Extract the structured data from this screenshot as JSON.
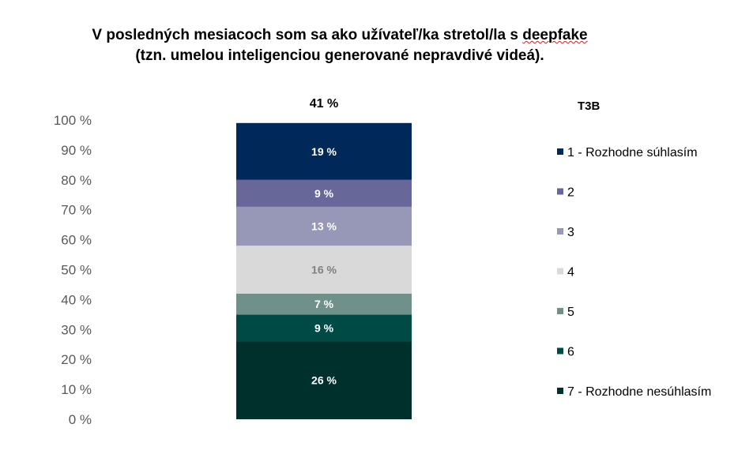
{
  "title": {
    "line1_pre": "V posledných mesiacoch som sa ako užívateľ/ka stretol/la s ",
    "line1_word": "deepfake",
    "line2": "(tzn. umelou inteligenciou generované nepravdivé videá)."
  },
  "chart_data": {
    "type": "bar",
    "stacked": true,
    "ylim": [
      0,
      100
    ],
    "yticks": [
      0,
      10,
      20,
      30,
      40,
      50,
      60,
      70,
      80,
      90,
      100
    ],
    "ytick_labels": [
      "0 %",
      "10 %",
      "20 %",
      "30 %",
      "40 %",
      "50 %",
      "60 %",
      "70 %",
      "80 %",
      "90 %",
      "100 %"
    ],
    "total_label": "41 %",
    "legend_title": "T3B",
    "legend_position": "right",
    "grid": false,
    "series": [
      {
        "name": "7 - Rozhodne nesúhlasím",
        "value": 26,
        "label": "26 %",
        "color": "#00302c",
        "label_color": "#ffffff"
      },
      {
        "name": "6",
        "value": 9,
        "label": "9 %",
        "color": "#004a46",
        "label_color": "#ffffff"
      },
      {
        "name": "5",
        "value": 7,
        "label": "7 %",
        "color": "#70908a",
        "label_color": "#ffffff"
      },
      {
        "name": "4",
        "value": 16,
        "label": "16 %",
        "color": "#d9d9d9",
        "label_color": "#808080"
      },
      {
        "name": "3",
        "value": 13,
        "label": "13 %",
        "color": "#9797b8",
        "label_color": "#ffffff"
      },
      {
        "name": "2",
        "value": 9,
        "label": "9 %",
        "color": "#67679a",
        "label_color": "#ffffff"
      },
      {
        "name": "1 - Rozhodne súhlasím",
        "value": 19,
        "label": "19 %",
        "color": "#002858",
        "label_color": "#ffffff"
      }
    ],
    "legend_order": [
      6,
      5,
      4,
      3,
      2,
      1,
      0
    ]
  }
}
